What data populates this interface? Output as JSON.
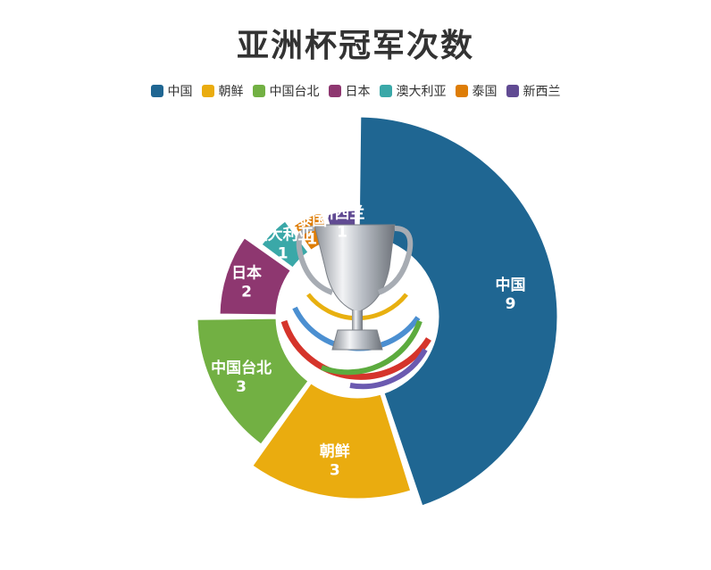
{
  "chart_data": {
    "type": "pie",
    "title": "亚洲杯冠军次数",
    "legend_position": "top",
    "categories": [
      "中国",
      "朝鲜",
      "中国台北",
      "日本",
      "澳大利亚",
      "泰国",
      "新西兰"
    ],
    "values": [
      9,
      3,
      3,
      2,
      1,
      1,
      1
    ],
    "colors": [
      "#1f6692",
      "#eaac0f",
      "#72b043",
      "#8e3770",
      "#3aa8a8",
      "#de7d06",
      "#614b93"
    ]
  },
  "center_icon": "trophy-icon"
}
